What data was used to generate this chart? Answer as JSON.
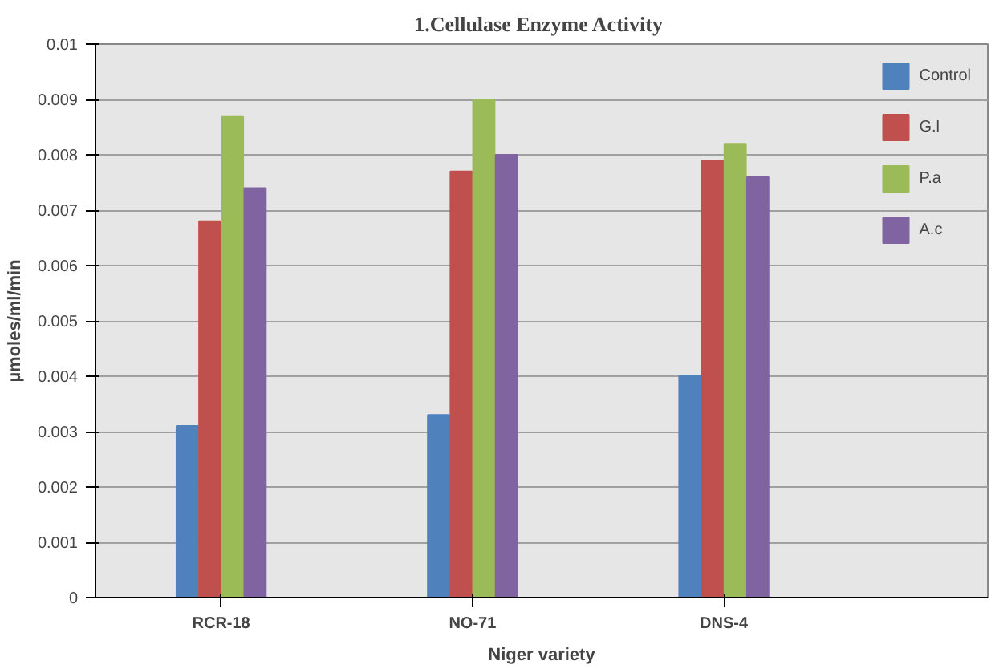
{
  "chart_data": {
    "type": "bar",
    "title": "1.Cellulase  Enzyme Activity",
    "xlabel": "Niger variety",
    "ylabel": "µmoles/ml/min",
    "categories": [
      "RCR-18",
      "NO-71",
      "DNS-4"
    ],
    "series": [
      {
        "name": "Control",
        "color": "#4f81bd",
        "values": [
          0.0031,
          0.0033,
          0.004
        ]
      },
      {
        "name": "G.l",
        "color": "#c0504d",
        "values": [
          0.0068,
          0.0077,
          0.0079
        ]
      },
      {
        "name": "P.a",
        "color": "#9bbb59",
        "values": [
          0.0087,
          0.009,
          0.0082
        ]
      },
      {
        "name": "A.c",
        "color": "#8064a2",
        "values": [
          0.0074,
          0.008,
          0.0076
        ]
      }
    ],
    "ylim": [
      0,
      0.01
    ],
    "yticks": [
      {
        "value": 0,
        "label": "0"
      },
      0.001,
      0.002,
      0.003,
      0.004,
      0.005,
      0.006,
      0.007,
      0.008,
      0.009,
      0.01
    ],
    "grid": "y",
    "legend": "top right"
  }
}
